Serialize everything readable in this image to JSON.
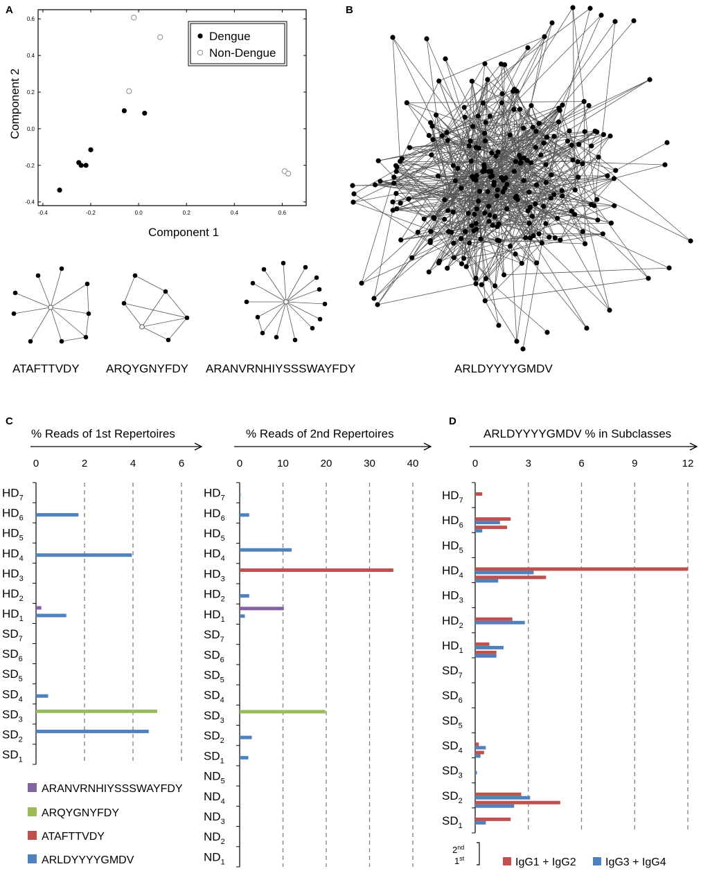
{
  "panel_letters": {
    "a": "A",
    "b": "B",
    "c": "C",
    "d": "D"
  },
  "chart_data": [
    {
      "id": "A",
      "type": "scatter",
      "xlabel": "Component 1",
      "ylabel": "Component 2",
      "xlim": [
        -0.42,
        0.7
      ],
      "ylim": [
        -0.42,
        0.65
      ],
      "xticks": [
        "-0.4",
        "-0.2",
        "0.0",
        "0.2",
        "0.4",
        "0.6"
      ],
      "yticks": [
        "-0.4",
        "-0.2",
        "0.0",
        "0.2",
        "0.4",
        "0.6"
      ],
      "legend": [
        "Dengue",
        "Non-Dengue"
      ],
      "series": [
        {
          "name": "Dengue",
          "marker": "filled",
          "points": [
            [
              -0.33,
              -0.335
            ],
            [
              -0.25,
              -0.185
            ],
            [
              -0.24,
              -0.2
            ],
            [
              -0.22,
              -0.2
            ],
            [
              -0.2,
              -0.115
            ],
            [
              -0.06,
              0.098
            ],
            [
              0.025,
              0.085
            ]
          ]
        },
        {
          "name": "Non-Dengue",
          "marker": "open",
          "points": [
            [
              -0.02,
              0.607
            ],
            [
              0.09,
              0.5
            ],
            [
              -0.04,
              0.205
            ],
            [
              0.61,
              -0.232
            ],
            [
              0.625,
              -0.245
            ]
          ]
        }
      ]
    },
    {
      "id": "C1",
      "type": "bar",
      "title": "% Reads of 1st Repertoires",
      "ticks": [
        "0",
        "2",
        "4",
        "6"
      ],
      "xlim": [
        0,
        6
      ],
      "categories": [
        "HD7",
        "HD6",
        "HD5",
        "HD4",
        "HD3",
        "HD2",
        "HD1",
        "SD7",
        "SD6",
        "SD5",
        "SD4",
        "SD3",
        "SD2",
        "SD1"
      ],
      "series": [
        {
          "name": "ARANVRNHIYSSSWAYFDY",
          "color": "#8064a2",
          "values": {
            "HD1": 0.22
          }
        },
        {
          "name": "ARQYGNYFDY",
          "color": "#9bbb59",
          "values": {
            "SD3": 5.0
          }
        },
        {
          "name": "ATAFTTVDY",
          "color": "#c0504d",
          "values": {}
        },
        {
          "name": "ARLDYYYYGMDV",
          "color": "#4f81bd",
          "values": {
            "HD6": 1.75,
            "HD4": 3.95,
            "HD1": 1.25,
            "SD4": 0.5,
            "SD2": 4.65
          }
        }
      ]
    },
    {
      "id": "C2",
      "type": "bar",
      "title": "% Reads of 2nd Repertoires",
      "ticks": [
        "0",
        "10",
        "20",
        "30",
        "40"
      ],
      "xlim": [
        0,
        40
      ],
      "categories": [
        "HD7",
        "HD6",
        "HD5",
        "HD4",
        "HD3",
        "HD2",
        "HD1",
        "SD7",
        "SD6",
        "SD5",
        "SD4",
        "SD3",
        "SD2",
        "SD1",
        "ND5",
        "ND4",
        "ND3",
        "ND2",
        "ND1"
      ],
      "series": [
        {
          "name": "ARANVRNHIYSSSWAYFDY",
          "color": "#8064a2",
          "values": {
            "HD1": 10.2
          }
        },
        {
          "name": "ARQYGNYFDY",
          "color": "#9bbb59",
          "values": {
            "SD3": 19.8
          }
        },
        {
          "name": "ATAFTTVDY",
          "color": "#c0504d",
          "values": {
            "HD3": 35.5
          }
        },
        {
          "name": "ARLDYYYYGMDV",
          "color": "#4f81bd",
          "values": {
            "HD7": 0.2,
            "HD6": 2.2,
            "HD4": 12.0,
            "HD2": 2.2,
            "HD1": 1.2,
            "SD2": 2.8,
            "SD1": 2.0
          }
        }
      ]
    },
    {
      "id": "D",
      "type": "bar",
      "title": "ARLDYYYYGMDV % in Subclasses",
      "ticks": [
        "0",
        "3",
        "6",
        "9",
        "12"
      ],
      "xlim": [
        0,
        12
      ],
      "categories": [
        "HD7",
        "HD6",
        "HD5",
        "HD4",
        "HD3",
        "HD2",
        "HD1",
        "SD7",
        "SD6",
        "SD5",
        "SD4",
        "SD3",
        "SD2",
        "SD1"
      ],
      "series": [
        {
          "name": "IgG1 + IgG2",
          "color": "#c0504d",
          "second": {
            "HD7": 0.4,
            "HD6": 2.0,
            "HD4": 12.0,
            "HD2": 2.1,
            "HD1": 0.8,
            "SD4": 0.2,
            "SD2": 2.6,
            "SD1": 2.0
          },
          "first": {
            "HD6": 1.8,
            "HD4": 4.0,
            "HD1": 1.2,
            "SD4": 0.5,
            "SD2": 4.8
          }
        },
        {
          "name": "IgG3 + IgG4",
          "color": "#4f81bd",
          "second": {
            "HD6": 1.4,
            "HD4": 3.3,
            "HD2": 2.8,
            "HD1": 1.6,
            "SD4": 0.6,
            "SD3": 0.1,
            "SD2": 3.1,
            "SD1": 0.6
          },
          "first": {
            "HD6": 0.4,
            "HD4": 1.3,
            "HD1": 1.2,
            "SD4": 0.3,
            "SD2": 2.2
          }
        }
      ]
    }
  ],
  "networks": {
    "labels": [
      "ATAFTTVDY",
      "ARQYGNYFDY",
      "ARANVRNHIYSSSWAYFDY",
      "ARLDYYYYGMDV"
    ]
  },
  "bracket": {
    "top": "2nd",
    "bottom": "1st"
  }
}
